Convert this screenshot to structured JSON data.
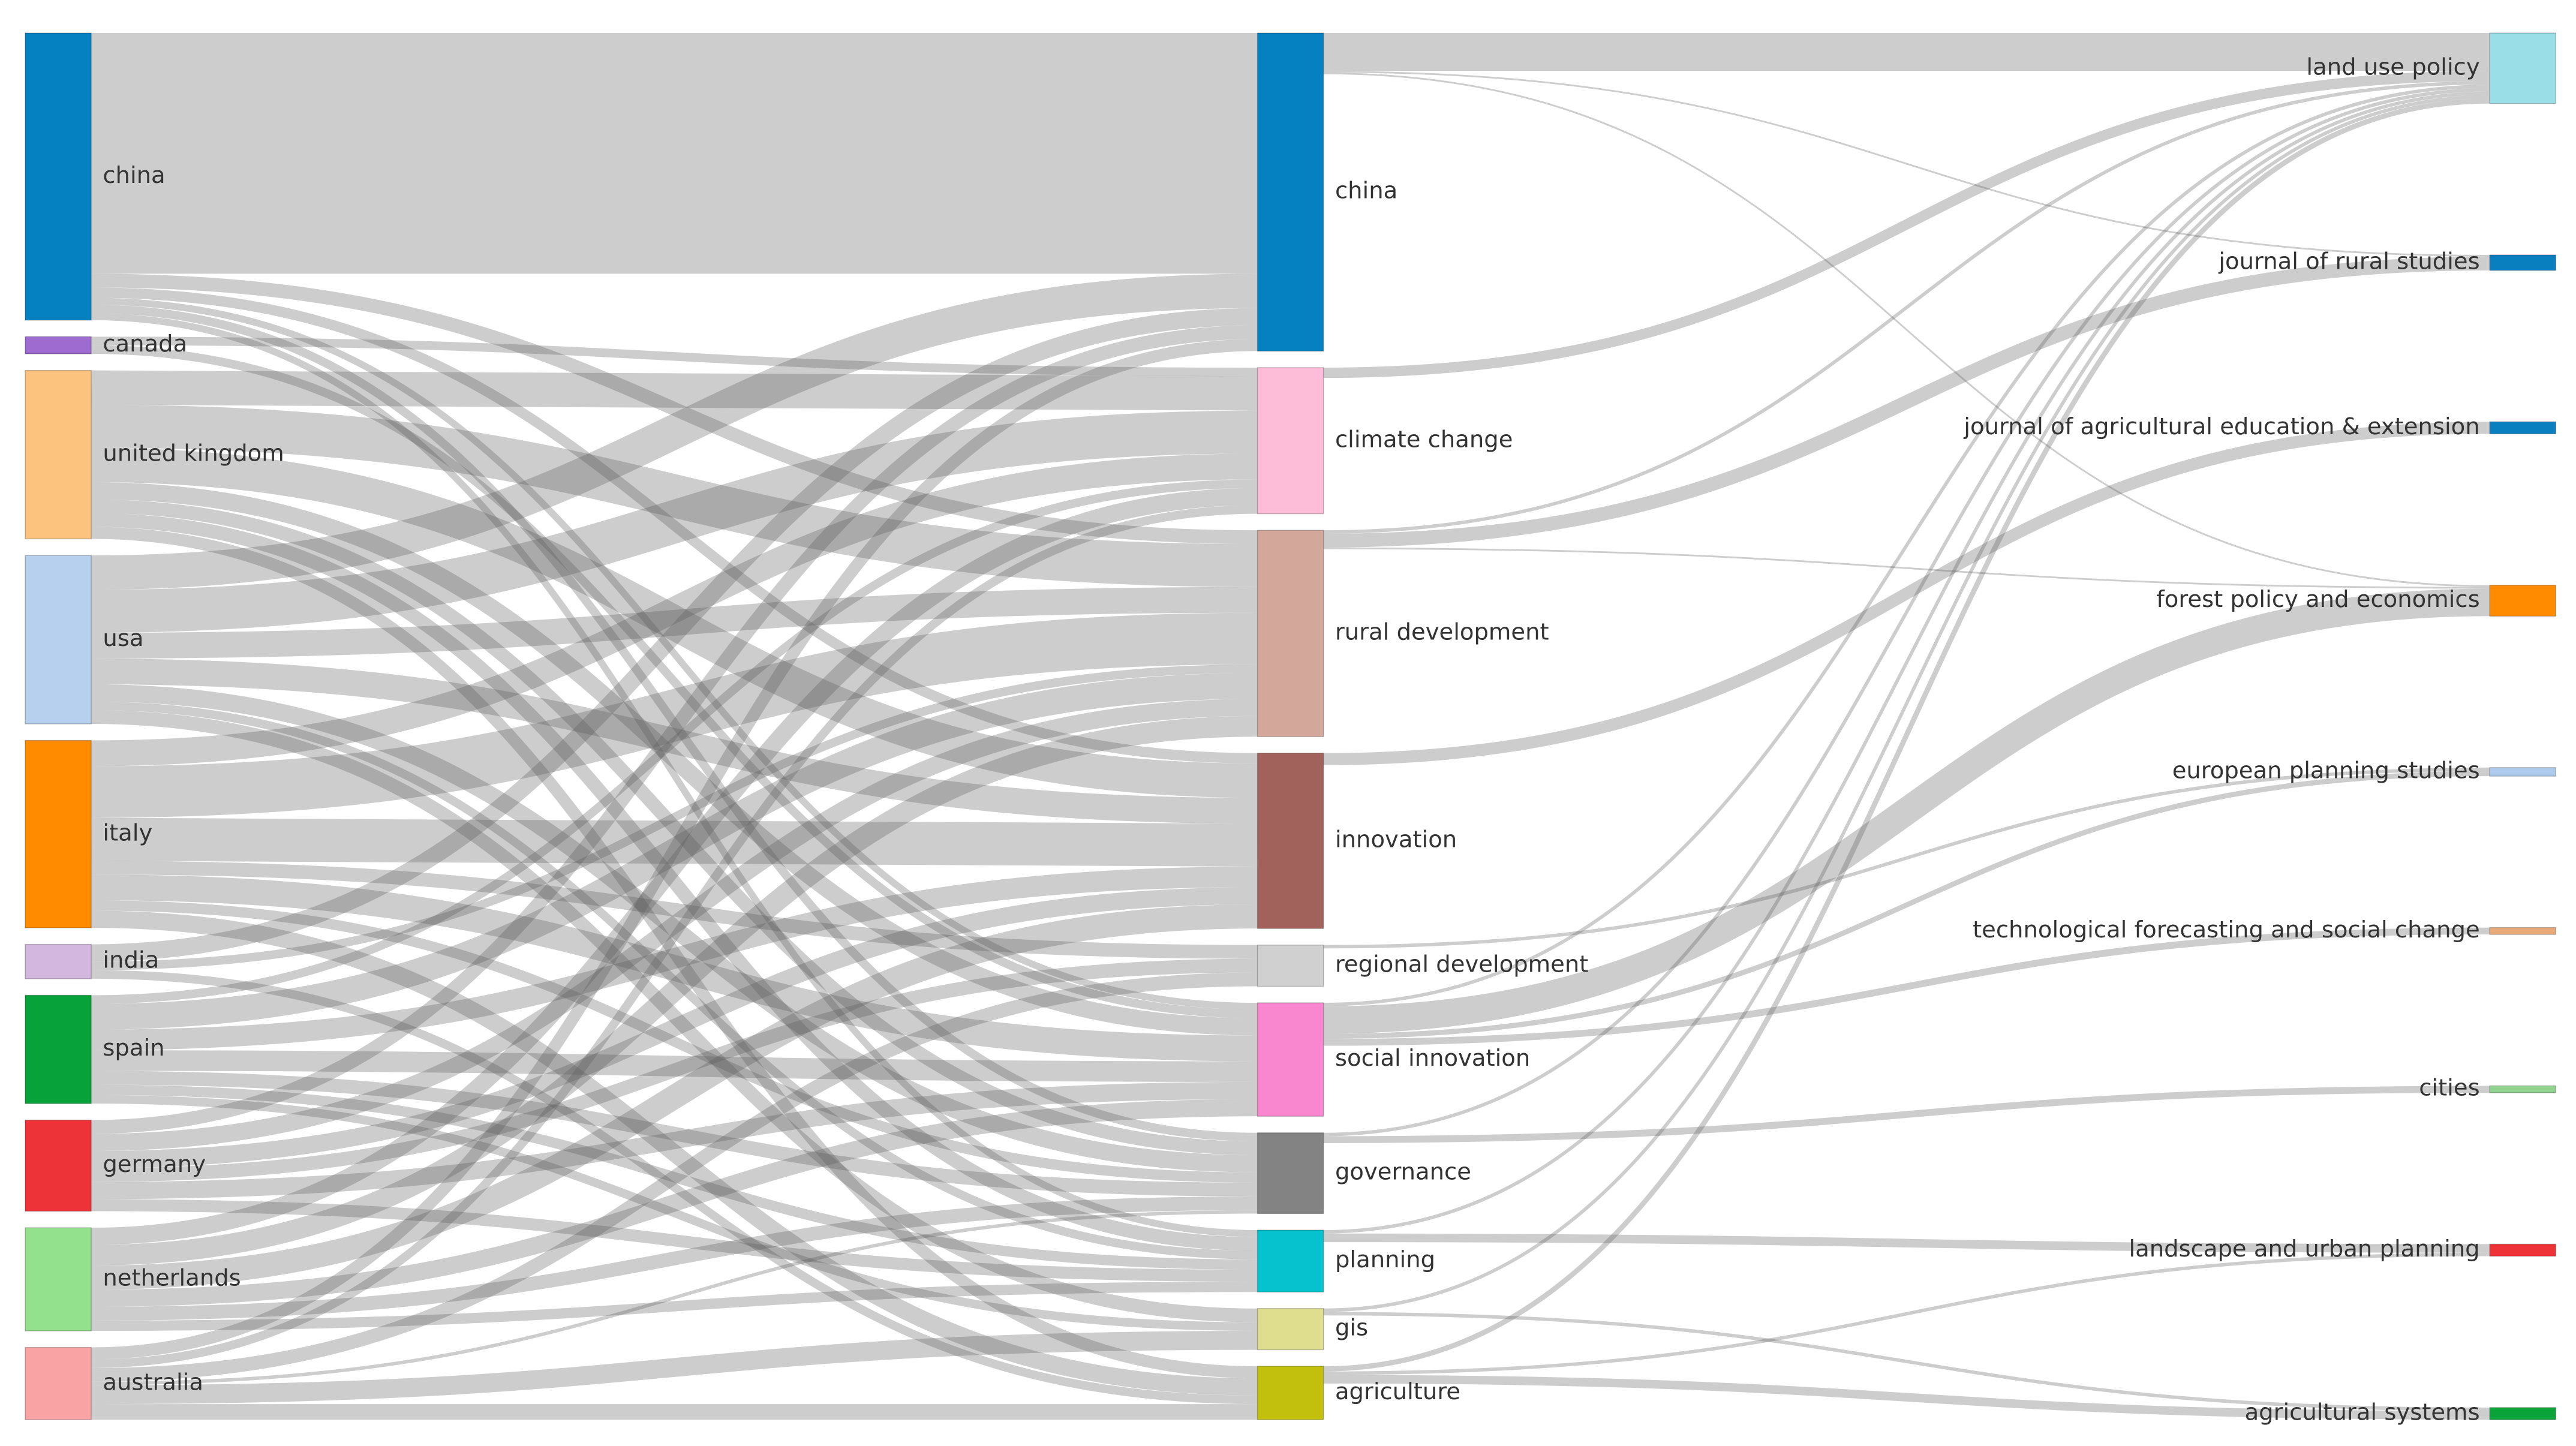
{
  "chart_data": {
    "type": "sankey",
    "link_color": "rgba(90,90,90,0.3)",
    "nodes": [
      {
        "name": "china",
        "color": "#0581c1"
      },
      {
        "name": "canada",
        "color": "#9e6bd0"
      },
      {
        "name": "united kingdom",
        "color": "#fcc37f"
      },
      {
        "name": "usa",
        "color": "#b6d0ee"
      },
      {
        "name": "italy",
        "color": "#ff8c00"
      },
      {
        "name": "india",
        "color": "#d3b7de"
      },
      {
        "name": "spain",
        "color": "#07a33a"
      },
      {
        "name": "germany",
        "color": "#ee3338"
      },
      {
        "name": "netherlands",
        "color": "#93e18d"
      },
      {
        "name": "australia",
        "color": "#f9a3a5"
      },
      {
        "name": "china",
        "color": "#0581c1"
      },
      {
        "name": "climate change",
        "color": "#fdbcd7"
      },
      {
        "name": "rural development",
        "color": "#d3a79a"
      },
      {
        "name": "innovation",
        "color": "#a0625a"
      },
      {
        "name": "regional development",
        "color": "#d0d0d0"
      },
      {
        "name": "social innovation",
        "color": "#f987cf"
      },
      {
        "name": "governance",
        "color": "#838383"
      },
      {
        "name": "planning",
        "color": "#06c2cf"
      },
      {
        "name": "gis",
        "color": "#dfde8e"
      },
      {
        "name": "agriculture",
        "color": "#c2c00c"
      },
      {
        "name": "land use policy",
        "color": "#9adfe8"
      },
      {
        "name": "journal of rural studies",
        "color": "#0a7fc0"
      },
      {
        "name": "journal of agricultural education & extension",
        "color": "#0a7fc0"
      },
      {
        "name": "forest policy and economics",
        "color": "#ff8c00"
      },
      {
        "name": "european planning studies",
        "color": "#aecbee"
      },
      {
        "name": "technological forecasting and social change",
        "color": "#e8a97a"
      },
      {
        "name": "cities",
        "color": "#8fd38e"
      },
      {
        "name": "landscape and urban planning",
        "color": "#ee3338"
      },
      {
        "name": "agricultural systems",
        "color": "#0aa33a"
      }
    ],
    "links": [
      {
        "source": 0,
        "target": 10,
        "value": 140
      },
      {
        "source": 0,
        "target": 12,
        "value": 8
      },
      {
        "source": 0,
        "target": 13,
        "value": 6
      },
      {
        "source": 0,
        "target": 15,
        "value": 4
      },
      {
        "source": 0,
        "target": 16,
        "value": 5
      },
      {
        "source": 0,
        "target": 17,
        "value": 4
      },
      {
        "source": 1,
        "target": 11,
        "value": 5
      },
      {
        "source": 1,
        "target": 15,
        "value": 5
      },
      {
        "source": 2,
        "target": 11,
        "value": 20
      },
      {
        "source": 2,
        "target": 12,
        "value": 25
      },
      {
        "source": 2,
        "target": 13,
        "value": 20
      },
      {
        "source": 2,
        "target": 15,
        "value": 10
      },
      {
        "source": 2,
        "target": 16,
        "value": 8
      },
      {
        "source": 2,
        "target": 17,
        "value": 8
      },
      {
        "source": 2,
        "target": 19,
        "value": 7
      },
      {
        "source": 3,
        "target": 10,
        "value": 20
      },
      {
        "source": 3,
        "target": 11,
        "value": 25
      },
      {
        "source": 3,
        "target": 12,
        "value": 15
      },
      {
        "source": 3,
        "target": 13,
        "value": 15
      },
      {
        "source": 3,
        "target": 16,
        "value": 10
      },
      {
        "source": 3,
        "target": 17,
        "value": 5
      },
      {
        "source": 3,
        "target": 18,
        "value": 8
      },
      {
        "source": 4,
        "target": 11,
        "value": 15
      },
      {
        "source": 4,
        "target": 12,
        "value": 30
      },
      {
        "source": 4,
        "target": 13,
        "value": 25
      },
      {
        "source": 4,
        "target": 14,
        "value": 8
      },
      {
        "source": 4,
        "target": 15,
        "value": 15
      },
      {
        "source": 4,
        "target": 16,
        "value": 6
      },
      {
        "source": 4,
        "target": 19,
        "value": 10
      },
      {
        "source": 5,
        "target": 10,
        "value": 10
      },
      {
        "source": 5,
        "target": 12,
        "value": 5
      },
      {
        "source": 5,
        "target": 19,
        "value": 5
      },
      {
        "source": 6,
        "target": 11,
        "value": 5
      },
      {
        "source": 6,
        "target": 12,
        "value": 15
      },
      {
        "source": 6,
        "target": 13,
        "value": 12
      },
      {
        "source": 6,
        "target": 15,
        "value": 12
      },
      {
        "source": 6,
        "target": 16,
        "value": 8
      },
      {
        "source": 6,
        "target": 17,
        "value": 6
      },
      {
        "source": 6,
        "target": 18,
        "value": 5
      },
      {
        "source": 7,
        "target": 10,
        "value": 8
      },
      {
        "source": 7,
        "target": 12,
        "value": 10
      },
      {
        "source": 7,
        "target": 13,
        "value": 10
      },
      {
        "source": 7,
        "target": 14,
        "value": 8
      },
      {
        "source": 7,
        "target": 15,
        "value": 10
      },
      {
        "source": 7,
        "target": 17,
        "value": 7
      },
      {
        "source": 8,
        "target": 11,
        "value": 10
      },
      {
        "source": 8,
        "target": 12,
        "value": 12
      },
      {
        "source": 8,
        "target": 13,
        "value": 14
      },
      {
        "source": 8,
        "target": 15,
        "value": 10
      },
      {
        "source": 8,
        "target": 16,
        "value": 8
      },
      {
        "source": 8,
        "target": 17,
        "value": 6
      },
      {
        "source": 9,
        "target": 10,
        "value": 7
      },
      {
        "source": 9,
        "target": 11,
        "value": 5
      },
      {
        "source": 9,
        "target": 14,
        "value": 8
      },
      {
        "source": 9,
        "target": 16,
        "value": 2
      },
      {
        "source": 9,
        "target": 18,
        "value": 11
      },
      {
        "source": 9,
        "target": 19,
        "value": 9
      },
      {
        "source": 10,
        "target": 20,
        "value": 22
      },
      {
        "source": 10,
        "target": 21,
        "value": 1
      },
      {
        "source": 10,
        "target": 23,
        "value": 1
      },
      {
        "source": 11,
        "target": 20,
        "value": 6
      },
      {
        "source": 12,
        "target": 20,
        "value": 2
      },
      {
        "source": 12,
        "target": 21,
        "value": 8
      },
      {
        "source": 12,
        "target": 23,
        "value": 1
      },
      {
        "source": 13,
        "target": 22,
        "value": 7
      },
      {
        "source": 14,
        "target": 24,
        "value": 2
      },
      {
        "source": 15,
        "target": 20,
        "value": 2
      },
      {
        "source": 15,
        "target": 23,
        "value": 16
      },
      {
        "source": 15,
        "target": 24,
        "value": 3
      },
      {
        "source": 15,
        "target": 25,
        "value": 4
      },
      {
        "source": 16,
        "target": 20,
        "value": 2
      },
      {
        "source": 16,
        "target": 26,
        "value": 4
      },
      {
        "source": 17,
        "target": 20,
        "value": 2
      },
      {
        "source": 17,
        "target": 27,
        "value": 5
      },
      {
        "source": 18,
        "target": 20,
        "value": 2
      },
      {
        "source": 18,
        "target": 28,
        "value": 2
      },
      {
        "source": 19,
        "target": 20,
        "value": 3
      },
      {
        "source": 19,
        "target": 27,
        "value": 2
      },
      {
        "source": 19,
        "target": 28,
        "value": 5
      }
    ]
  }
}
